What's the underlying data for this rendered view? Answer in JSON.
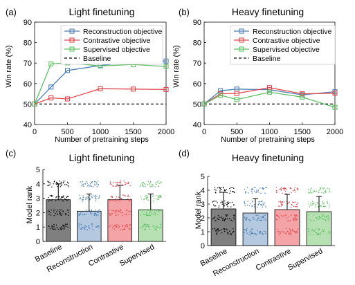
{
  "chart_data": [
    {
      "panel": "(a)",
      "type": "line",
      "title": "Light finetuning",
      "xlabel": "Number of pretraining steps",
      "ylabel": "Win rate (%)",
      "xlim": [
        0,
        2000
      ],
      "ylim": [
        40,
        90
      ],
      "xticks": [
        0,
        500,
        1000,
        1500,
        2000
      ],
      "yticks": [
        40,
        50,
        60,
        70,
        80,
        90
      ],
      "legend_position": "top-right",
      "x": [
        0,
        250,
        500,
        1000,
        1500,
        2000
      ],
      "series": [
        {
          "name": "Reconstruction objective",
          "color": "#4a7eb5",
          "marker": "square",
          "values": [
            50,
            58.3,
            66.4,
            68.8,
            70.8,
            71.0
          ]
        },
        {
          "name": "Contrastive objective",
          "color": "#e0474c",
          "marker": "square",
          "values": [
            50,
            53.0,
            52.5,
            57.5,
            57.3,
            57.1
          ]
        },
        {
          "name": "Supervised objective",
          "color": "#5dbf62",
          "marker": "square",
          "values": [
            50,
            69.6,
            70.1,
            68.6,
            69.3,
            68.3
          ]
        }
      ],
      "baseline": {
        "name": "Baseline",
        "value": 50,
        "style": "dashed",
        "color": "#000000"
      }
    },
    {
      "panel": "(b)",
      "type": "line",
      "title": "Heavy finetuning",
      "xlabel": "Number of pretraining steps",
      "ylabel": "Win rate (%)",
      "xlim": [
        0,
        2000
      ],
      "ylim": [
        40,
        90
      ],
      "xticks": [
        0,
        500,
        1000,
        1500,
        2000
      ],
      "yticks": [
        40,
        50,
        60,
        70,
        80,
        90
      ],
      "legend_position": "top-right",
      "x": [
        0,
        250,
        500,
        1000,
        1500,
        2000
      ],
      "series": [
        {
          "name": "Reconstruction objective",
          "color": "#4a7eb5",
          "marker": "square",
          "values": [
            50,
            56.5,
            57.3,
            57.0,
            54.5,
            56.0
          ]
        },
        {
          "name": "Contrastive objective",
          "color": "#e0474c",
          "marker": "square",
          "values": [
            50,
            55.0,
            55.2,
            58.0,
            55.0,
            55.3
          ]
        },
        {
          "name": "Supervised objective",
          "color": "#5dbf62",
          "marker": "square",
          "values": [
            50,
            54.3,
            52.2,
            55.8,
            53.4,
            48.4
          ]
        }
      ],
      "baseline": {
        "name": "Baseline",
        "value": 50,
        "style": "dashed",
        "color": "#000000"
      }
    },
    {
      "panel": "(c)",
      "type": "bar",
      "title": "Light finetuning",
      "ylabel": "Model rank",
      "ylim": [
        0,
        5
      ],
      "yticks": [
        0,
        1,
        2,
        3,
        4,
        5
      ],
      "categories": [
        "Baseline",
        "Reconstruction",
        "Contrastive",
        "Supervised"
      ],
      "values": [
        2.9,
        2.1,
        2.9,
        2.2
      ],
      "error": [
        1.1,
        1.2,
        1.0,
        1.1
      ],
      "colors": [
        "#7f7f7f",
        "#b4c9e0",
        "#f4a3a7",
        "#b7e0b3"
      ],
      "dot_colors": [
        "#000000",
        "#4a7eb5",
        "#e0474c",
        "#5dbf62"
      ],
      "dot_levels": [
        1,
        2,
        3,
        4
      ]
    },
    {
      "panel": "(d)",
      "type": "bar",
      "title": "Heavy finetuning",
      "ylabel": "Model rank",
      "ylim": [
        0,
        5
      ],
      "yticks": [
        0,
        1,
        2,
        3,
        4,
        5
      ],
      "categories": [
        "Baseline",
        "Reconstruction",
        "Contrastive",
        "Supervised"
      ],
      "values": [
        2.65,
        2.35,
        2.6,
        2.45
      ],
      "error": [
        1.2,
        1.05,
        1.1,
        1.1
      ],
      "colors": [
        "#7f7f7f",
        "#b4c9e0",
        "#f4a3a7",
        "#b7e0b3"
      ],
      "dot_colors": [
        "#000000",
        "#4a7eb5",
        "#e0474c",
        "#5dbf62"
      ],
      "dot_levels": [
        1,
        2,
        3,
        4
      ]
    }
  ]
}
